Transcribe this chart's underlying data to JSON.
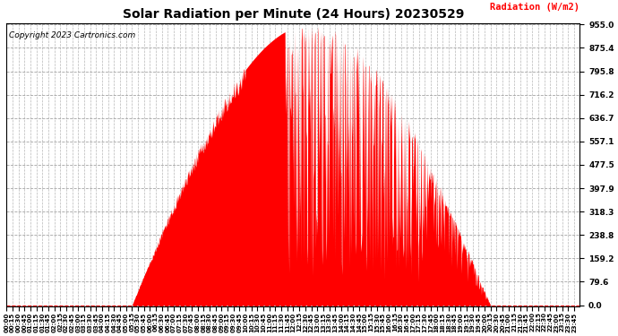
{
  "title": "Solar Radiation per Minute (24 Hours) 20230529",
  "copyright": "Copyright 2023 Cartronics.com",
  "ylabel": "Radiation (W/m2)",
  "ylabel_color": "#ff0000",
  "copyright_color": "#000000",
  "fill_color": "#ff0000",
  "line_color": "#ff0000",
  "background_color": "#ffffff",
  "grid_color": "#999999",
  "yticks": [
    0.0,
    79.6,
    159.2,
    238.8,
    318.3,
    397.9,
    477.5,
    557.1,
    636.7,
    716.2,
    795.8,
    875.4,
    955.0
  ],
  "ymax": 955.0,
  "ymin": 0.0,
  "hline_color": "#ff0000",
  "sunrise_min": 315,
  "sunset_min": 1215,
  "peak_radiation": 955.0,
  "figwidth": 6.9,
  "figheight": 3.75,
  "dpi": 100
}
